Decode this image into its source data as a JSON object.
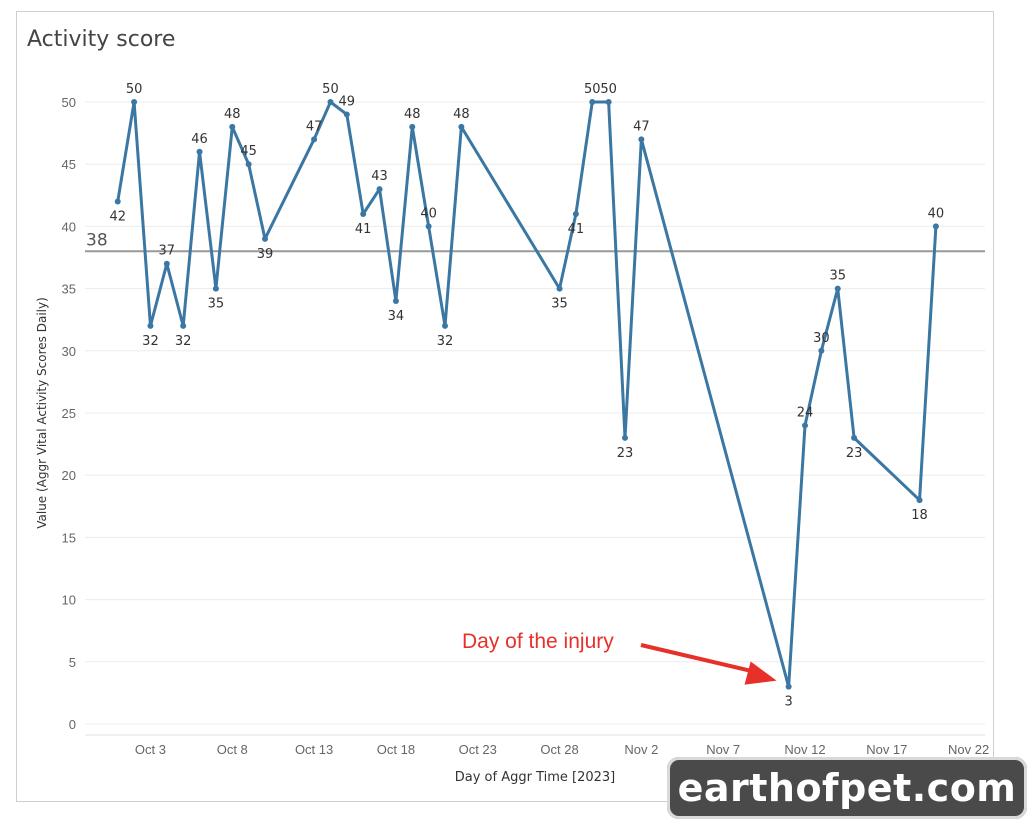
{
  "chart_data": {
    "type": "line",
    "title": "Activity score",
    "xlabel": "Day of Aggr Time [2023]",
    "ylabel": "Value (Aggr Vital Activity Scores Daily)",
    "ylim": [
      0,
      50
    ],
    "yticks": [
      0,
      5,
      10,
      15,
      20,
      25,
      30,
      35,
      40,
      45,
      50
    ],
    "xticks": [
      "2023-10-03",
      "2023-10-08",
      "2023-10-13",
      "2023-10-18",
      "2023-10-23",
      "2023-10-28",
      "2023-11-02",
      "2023-11-07",
      "2023-11-12",
      "2023-11-17",
      "2023-11-22"
    ],
    "xtick_labels": [
      "Oct 3",
      "Oct 8",
      "Oct 13",
      "Oct 18",
      "Oct 23",
      "Oct 28",
      "Nov 2",
      "Nov 7",
      "Nov 12",
      "Nov 17",
      "Nov 22"
    ],
    "xlim": [
      "2023-09-29",
      "2023-11-23"
    ],
    "grid": true,
    "series": [
      {
        "color": "#3b77a3",
        "points": [
          {
            "x": "2023-10-01",
            "y": 42,
            "label": "42"
          },
          {
            "x": "2023-10-02",
            "y": 50,
            "label": "50"
          },
          {
            "x": "2023-10-03",
            "y": 32,
            "label": "32"
          },
          {
            "x": "2023-10-04",
            "y": 37,
            "label": "37"
          },
          {
            "x": "2023-10-05",
            "y": 32,
            "label": "32"
          },
          {
            "x": "2023-10-06",
            "y": 46,
            "label": "46"
          },
          {
            "x": "2023-10-07",
            "y": 35,
            "label": "35"
          },
          {
            "x": "2023-10-08",
            "y": 48,
            "label": "48"
          },
          {
            "x": "2023-10-09",
            "y": 45,
            "label": "45"
          },
          {
            "x": "2023-10-10",
            "y": 39,
            "label": "39"
          },
          {
            "x": "2023-10-13",
            "y": 47,
            "label": "47"
          },
          {
            "x": "2023-10-14",
            "y": 50,
            "label": "50"
          },
          {
            "x": "2023-10-15",
            "y": 49,
            "label": "49"
          },
          {
            "x": "2023-10-16",
            "y": 41,
            "label": "41"
          },
          {
            "x": "2023-10-17",
            "y": 43,
            "label": "43"
          },
          {
            "x": "2023-10-18",
            "y": 34,
            "label": "34"
          },
          {
            "x": "2023-10-19",
            "y": 48,
            "label": "48"
          },
          {
            "x": "2023-10-20",
            "y": 40,
            "label": "40"
          },
          {
            "x": "2023-10-21",
            "y": 32,
            "label": "32"
          },
          {
            "x": "2023-10-22",
            "y": 48,
            "label": "48"
          },
          {
            "x": "2023-10-28",
            "y": 35,
            "label": "35"
          },
          {
            "x": "2023-10-29",
            "y": 41,
            "label": "41"
          },
          {
            "x": "2023-10-30",
            "y": 50,
            "label": "50"
          },
          {
            "x": "2023-10-31",
            "y": 50,
            "label": "50"
          },
          {
            "x": "2023-11-01",
            "y": 23,
            "label": "23"
          },
          {
            "x": "2023-11-02",
            "y": 47,
            "label": "47"
          },
          {
            "x": "2023-11-11",
            "y": 3,
            "label": "3"
          },
          {
            "x": "2023-11-12",
            "y": 24,
            "label": "24"
          },
          {
            "x": "2023-11-13",
            "y": 30,
            "label": "30"
          },
          {
            "x": "2023-11-14",
            "y": 35,
            "label": "35"
          },
          {
            "x": "2023-11-15",
            "y": 23,
            "label": "23"
          },
          {
            "x": "2023-11-19",
            "y": 18,
            "label": "18"
          },
          {
            "x": "2023-11-20",
            "y": 40,
            "label": "40"
          }
        ]
      }
    ],
    "reference_line": {
      "value": 38,
      "label": "38",
      "color": "#999999"
    },
    "annotations": [
      {
        "text": "Day of the injury",
        "color": "#e8302a",
        "target_x": "2023-11-11",
        "target_y": 3
      }
    ]
  },
  "watermark": {
    "text": "earthofpet.com"
  }
}
